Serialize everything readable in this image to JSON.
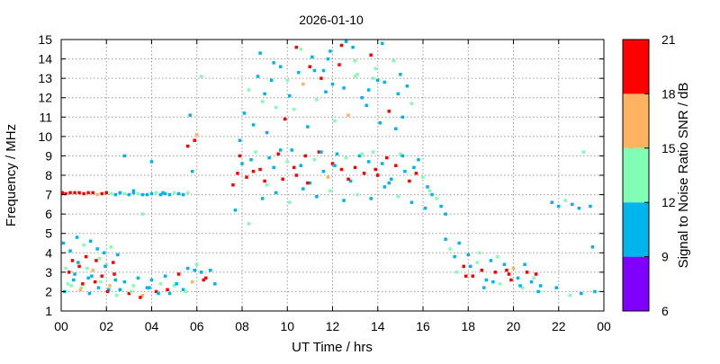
{
  "chart_data": {
    "type": "scatter",
    "title": "2026-01-10",
    "xlabel": "UT Time / hrs",
    "ylabel": "Frequency / MHz",
    "xlim": [
      0,
      24
    ],
    "ylim": [
      1,
      15
    ],
    "grid": true,
    "x_ticks": [
      "00",
      "02",
      "04",
      "06",
      "08",
      "10",
      "12",
      "14",
      "16",
      "18",
      "20",
      "22",
      "00"
    ],
    "y_ticks": [
      "1",
      "2",
      "3",
      "4",
      "5",
      "6",
      "7",
      "8",
      "9",
      "10",
      "11",
      "12",
      "13",
      "14",
      "15"
    ],
    "colorbar": {
      "label": "Signal to Noise Ratio SNR / dB",
      "ticks": [
        "6",
        "9",
        "12",
        "15",
        "18",
        "21"
      ],
      "bins": [
        {
          "min": 6,
          "max": 9,
          "color": "#7f00ff"
        },
        {
          "min": 9,
          "max": 12,
          "color": "#00b4ec"
        },
        {
          "min": 12,
          "max": 15,
          "color": "#80ffb4"
        },
        {
          "min": 15,
          "max": 18,
          "color": "#ffb360"
        },
        {
          "min": 18,
          "max": 21,
          "color": "#ff0000"
        }
      ]
    },
    "series": [
      {
        "x": [
          0.05,
          0.2,
          0.4,
          0.6,
          0.8,
          1.0,
          1.2,
          1.4,
          1.6,
          1.8,
          2.0,
          2.2,
          2.4,
          2.6,
          2.8,
          3.0,
          3.2,
          3.4,
          3.6,
          3.8,
          4.0,
          4.2,
          4.4,
          4.6,
          4.8,
          5.0,
          5.2,
          5.4,
          5.6
        ],
        "y": [
          7.1,
          7.05,
          7.1,
          7.1,
          7.1,
          7.05,
          7.1,
          7.1,
          7.0,
          7.05,
          7.1,
          7.05,
          7.0,
          7.1,
          7.05,
          7.0,
          7.1,
          7.05,
          7.0,
          7.0,
          7.05,
          7.1,
          7.0,
          7.05,
          7.0,
          7.1,
          7.05,
          7.0,
          7.1
        ],
        "snr": [
          20,
          20,
          19,
          20,
          19,
          18,
          20,
          19,
          17,
          19,
          20,
          12,
          10,
          11,
          12,
          10,
          11,
          12,
          10,
          11,
          10,
          12,
          11,
          10,
          11,
          12,
          11,
          10,
          12
        ]
      },
      {
        "x": [
          0.1,
          0.2,
          0.3,
          0.4,
          0.5,
          0.6,
          0.7,
          0.8,
          0.9,
          1.0,
          1.1,
          1.2,
          1.3,
          1.4,
          1.5,
          1.6,
          1.7,
          1.8,
          1.9,
          2.0,
          2.1,
          2.2,
          2.3,
          2.4,
          2.5,
          0.15,
          0.45,
          0.85,
          1.25,
          1.65,
          2.05,
          2.45,
          0.35,
          0.75,
          1.15,
          1.55,
          1.95,
          2.35,
          0.55,
          0.95,
          1.35,
          1.75,
          2.15
        ],
        "y": [
          4.5,
          3.2,
          2.4,
          4.1,
          3.6,
          2.9,
          4.8,
          3.3,
          2.2,
          4.4,
          3.8,
          2.7,
          4.6,
          3.1,
          2.5,
          4.2,
          3.7,
          2.8,
          4.0,
          3.4,
          2.1,
          4.3,
          3.5,
          2.6,
          3.9,
          2.0,
          2.3,
          2.1,
          1.9,
          2.2,
          2.0,
          1.8,
          3.0,
          3.5,
          3.2,
          3.6,
          3.3,
          2.9,
          2.6,
          2.4,
          2.8,
          2.5,
          2.3
        ],
        "snr": [
          10,
          12,
          14,
          11,
          19,
          10,
          11,
          20,
          13,
          12,
          18,
          10,
          11,
          16,
          19,
          10,
          12,
          20,
          11,
          13,
          10,
          12,
          19,
          10,
          11,
          10,
          12,
          15,
          10,
          11,
          20,
          12,
          19,
          11,
          12,
          20,
          10,
          18,
          11,
          19,
          10,
          12,
          16
        ]
      },
      {
        "x": [
          2.6,
          2.8,
          3.0,
          3.2,
          3.4,
          3.6,
          3.8,
          4.0,
          4.2,
          4.4,
          4.6,
          4.8,
          5.0,
          5.2,
          5.4,
          5.6,
          5.8,
          6.0,
          6.2,
          6.4,
          6.6,
          6.8,
          3.1,
          3.5,
          3.9,
          4.3,
          4.7,
          5.1,
          5.5,
          5.9,
          6.3
        ],
        "y": [
          2.1,
          2.5,
          1.9,
          2.3,
          2.7,
          1.8,
          2.2,
          2.6,
          2.0,
          2.4,
          2.8,
          1.9,
          2.3,
          2.9,
          2.1,
          3.2,
          2.5,
          3.4,
          3.0,
          2.7,
          3.1,
          2.4,
          2.0,
          1.7,
          2.2,
          1.9,
          2.1,
          2.4,
          2.0,
          3.1,
          2.6
        ],
        "snr": [
          10,
          11,
          19,
          12,
          10,
          15,
          11,
          10,
          20,
          12,
          11,
          10,
          12,
          19,
          10,
          11,
          16,
          12,
          10,
          20,
          11,
          10,
          12,
          18,
          10,
          11,
          20,
          10,
          12,
          11,
          19
        ]
      },
      {
        "x": [
          7.6,
          7.8,
          8.0,
          8.2,
          8.4,
          8.6,
          8.8,
          9.0,
          9.2,
          9.4,
          9.6,
          9.8,
          10.0,
          10.2,
          10.4,
          10.6,
          10.8,
          11.0,
          11.2,
          11.4,
          11.6,
          11.8,
          12.0,
          12.2,
          12.4,
          12.6,
          12.8,
          13.0,
          13.2,
          13.4,
          13.6,
          13.8,
          14.0,
          14.2,
          14.4,
          14.6,
          14.8,
          15.0,
          15.2,
          15.4,
          15.6,
          15.8,
          16.0,
          16.2,
          16.4,
          16.6,
          16.8,
          17.0,
          7.9,
          8.5,
          9.1,
          9.7,
          10.3,
          10.9,
          11.5,
          12.1,
          12.7,
          13.3,
          13.9,
          14.5,
          15.1,
          15.7,
          16.3,
          7.7,
          8.3,
          8.9,
          9.5,
          10.1,
          10.7,
          11.3,
          11.9,
          12.5,
          13.1,
          13.7,
          14.3,
          14.9,
          15.5,
          16.1
        ],
        "y": [
          7.5,
          8.1,
          8.6,
          7.9,
          8.8,
          9.2,
          8.3,
          7.7,
          8.9,
          8.4,
          9.1,
          7.8,
          8.7,
          9.3,
          8.0,
          8.5,
          9.0,
          7.6,
          8.8,
          9.2,
          8.2,
          7.9,
          8.6,
          9.1,
          8.3,
          8.9,
          7.7,
          8.4,
          9.0,
          8.1,
          8.7,
          9.2,
          8.0,
          8.6,
          8.9,
          7.8,
          8.5,
          9.1,
          8.2,
          7.7,
          8.4,
          8.8,
          7.9,
          7.4,
          7.0,
          6.8,
          6.4,
          6.0,
          9.0,
          8.2,
          7.5,
          9.3,
          8.4,
          7.6,
          9.2,
          8.5,
          7.8,
          9.1,
          8.3,
          7.6,
          9.0,
          8.1,
          7.2,
          6.2,
          5.5,
          6.8,
          7.1,
          6.6,
          7.3,
          6.9,
          7.2,
          6.7,
          7.0,
          6.8,
          7.4,
          6.9,
          6.6,
          6.3
        ],
        "snr": [
          20,
          19,
          11,
          20,
          10,
          12,
          20,
          19,
          11,
          10,
          20,
          18,
          12,
          10,
          20,
          11,
          19,
          10,
          12,
          20,
          11,
          16,
          20,
          10,
          19,
          12,
          11,
          20,
          10,
          19,
          11,
          12,
          20,
          10,
          19,
          11,
          20,
          12,
          10,
          19,
          11,
          10,
          12,
          11,
          10,
          12,
          10,
          11,
          20,
          19,
          12,
          10,
          18,
          20,
          10,
          11,
          19,
          12,
          20,
          10,
          11,
          19,
          12,
          11,
          12,
          10,
          11,
          12,
          10,
          11,
          13,
          10,
          12,
          11,
          10,
          12,
          11,
          10
        ]
      },
      {
        "x": [
          7.9,
          8.1,
          8.3,
          8.5,
          8.7,
          8.9,
          9.1,
          9.3,
          9.5,
          9.7,
          9.9,
          10.1,
          10.3,
          10.5,
          10.7,
          10.9,
          11.1,
          11.3,
          11.5,
          11.7,
          11.9,
          12.1,
          12.3,
          12.5,
          12.7,
          12.9,
          13.1,
          13.3,
          13.5,
          13.7,
          13.9,
          14.1,
          14.3,
          14.5,
          14.7,
          14.9,
          15.1,
          15.3,
          15.5,
          8.8,
          9.4,
          10.6,
          11.2,
          11.8,
          12.4,
          13.0,
          13.6,
          14.2,
          14.8,
          9.0,
          10.0,
          11.0,
          12.0,
          13.0,
          14.0,
          15.0,
          10.4,
          11.6,
          12.6,
          13.8
        ],
        "y": [
          9.8,
          11.2,
          12.4,
          10.6,
          13.1,
          11.8,
          10.2,
          12.9,
          11.5,
          13.6,
          10.9,
          12.1,
          11.4,
          13.3,
          12.7,
          10.5,
          14.1,
          11.9,
          13.0,
          12.3,
          14.4,
          10.8,
          13.7,
          12.5,
          11.1,
          14.6,
          13.2,
          12.0,
          11.6,
          14.2,
          13.5,
          10.7,
          12.8,
          11.3,
          13.9,
          12.2,
          11.0,
          12.6,
          11.7,
          14.3,
          13.8,
          14.5,
          13.4,
          14.0,
          14.7,
          13.9,
          12.4,
          14.8,
          10.4,
          12.2,
          12.9,
          13.6,
          12.7,
          13.1,
          12.9,
          13.2,
          14.6,
          13.4,
          14.9,
          13.0
        ],
        "snr": [
          11,
          10,
          12,
          11,
          10,
          13,
          11,
          10,
          12,
          11,
          19,
          10,
          12,
          11,
          16,
          10,
          11,
          12,
          20,
          10,
          11,
          12,
          19,
          10,
          16,
          11,
          12,
          10,
          11,
          20,
          12,
          10,
          11,
          19,
          12,
          10,
          11,
          10,
          12,
          11,
          10,
          12,
          11,
          10,
          20,
          12,
          11,
          10,
          11,
          10,
          12,
          19,
          11,
          12,
          10,
          11,
          20,
          10,
          11,
          12
        ]
      },
      {
        "x": [
          17.0,
          17.2,
          17.4,
          17.6,
          17.8,
          18.0,
          18.2,
          18.4,
          18.6,
          18.8,
          19.0,
          19.2,
          19.4,
          19.6,
          19.8,
          20.0,
          20.2,
          20.4,
          20.6,
          20.8,
          21.0,
          21.2,
          17.5,
          18.1,
          18.7,
          19.3,
          19.9,
          20.5,
          21.1,
          17.9,
          18.5,
          19.1,
          19.7,
          20.3,
          20.9
        ],
        "y": [
          4.7,
          4.2,
          3.8,
          4.5,
          3.3,
          3.9,
          2.8,
          3.5,
          3.1,
          2.6,
          3.6,
          3.0,
          2.4,
          3.4,
          2.9,
          3.2,
          2.7,
          2.2,
          3.0,
          2.5,
          2.9,
          2.3,
          3.0,
          3.3,
          2.2,
          3.8,
          2.6,
          3.4,
          2.0,
          2.8,
          4.0,
          2.5,
          3.1,
          2.3,
          2.7
        ],
        "snr": [
          10,
          12,
          11,
          10,
          20,
          11,
          19,
          12,
          20,
          11,
          10,
          19,
          12,
          11,
          20,
          16,
          10,
          12,
          20,
          11,
          19,
          10,
          12,
          11,
          10,
          12,
          20,
          11,
          10,
          19,
          12,
          11,
          20,
          10,
          12
        ]
      },
      {
        "x": [
          5.6,
          5.8,
          6.0,
          6.2,
          5.7,
          5.9,
          21.7,
          22.0,
          22.3,
          22.6,
          22.9,
          23.1,
          23.4,
          23.6,
          21.9,
          22.5,
          23.0,
          23.5,
          2.8,
          3.2,
          3.6,
          4.0,
          4.5
        ],
        "y": [
          9.5,
          8.2,
          10.1,
          13.1,
          11.1,
          9.8,
          6.6,
          6.4,
          6.7,
          6.5,
          6.3,
          9.2,
          6.4,
          2.0,
          2.2,
          1.8,
          1.9,
          4.3,
          9.0,
          7.2,
          6.0,
          8.7,
          7.1
        ],
        "snr": [
          19,
          11,
          16,
          12,
          10,
          20,
          11,
          10,
          12,
          10,
          11,
          12,
          10,
          11,
          10,
          12,
          10,
          11,
          11,
          10,
          12,
          11,
          10
        ]
      }
    ]
  }
}
